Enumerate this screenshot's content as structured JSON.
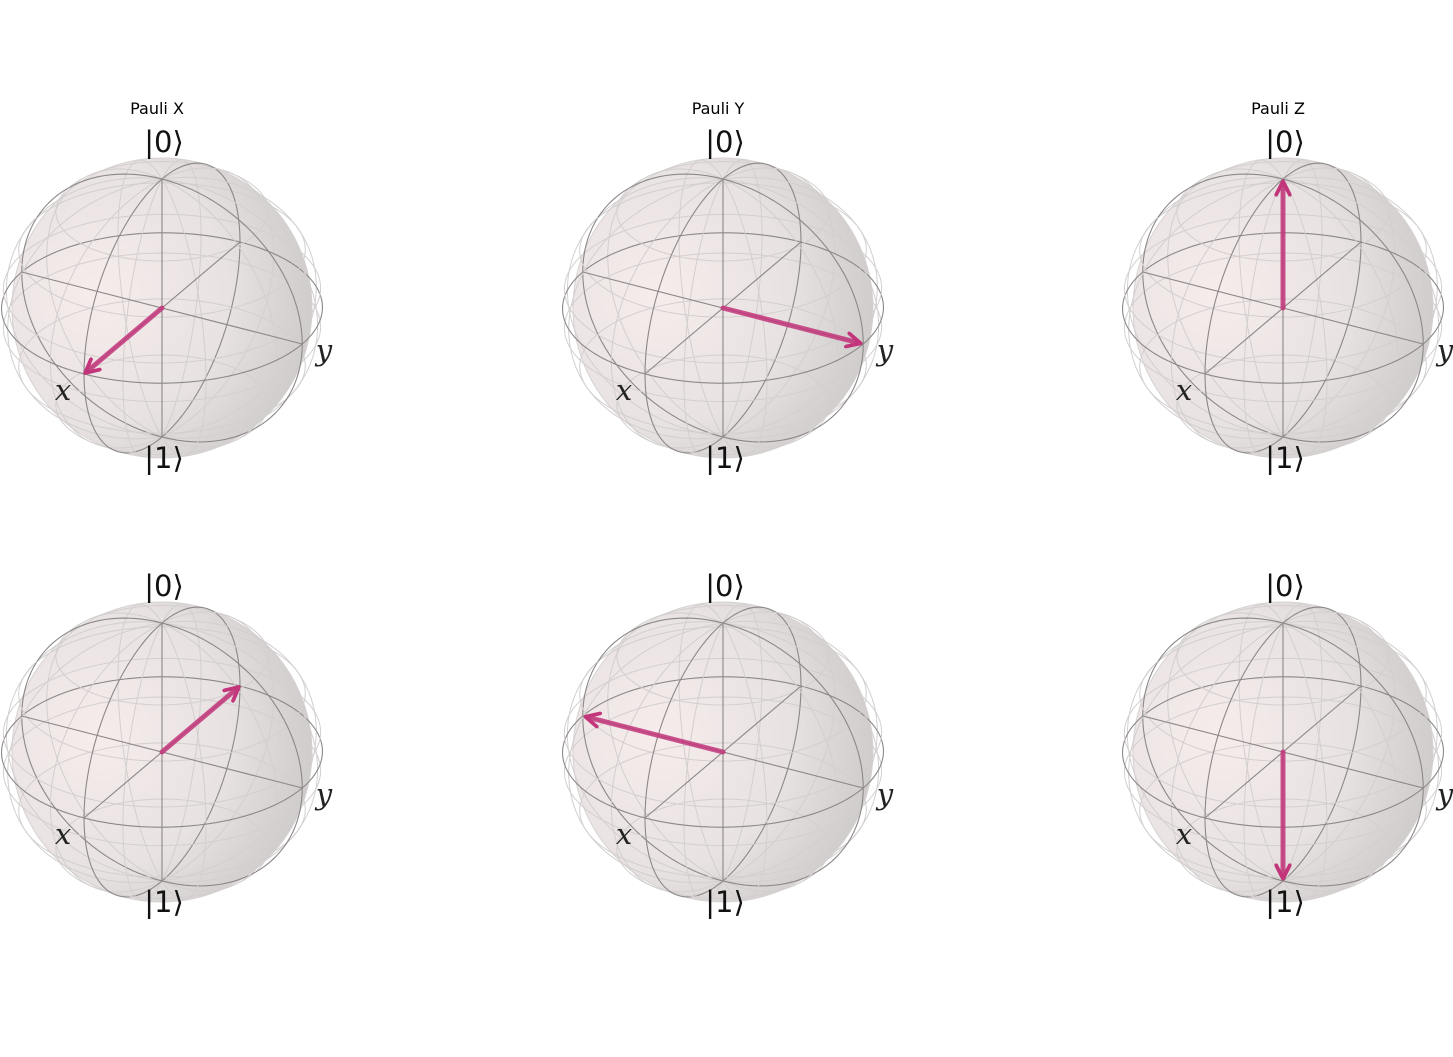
{
  "figure": {
    "colors": {
      "sphere_light": "#f7ecec",
      "sphere_mid": "#e8e2e2",
      "sphere_dark": "#c9c6c6",
      "wire_back": "#d3cfcf",
      "wire_front": "#8c8888",
      "vector": "#c2357a"
    },
    "panels": [
      {
        "title": "Pauli X",
        "label_zero": "|0⟩",
        "label_one": "|1⟩",
        "label_x": "x",
        "label_y": "y",
        "vector": {
          "x": 1,
          "y": 0,
          "z": 0
        }
      },
      {
        "title": "Pauli Y",
        "label_zero": "|0⟩",
        "label_one": "|1⟩",
        "label_x": "x",
        "label_y": "y",
        "vector": {
          "x": 0,
          "y": 1,
          "z": 0
        }
      },
      {
        "title": "Pauli Z",
        "label_zero": "|0⟩",
        "label_one": "|1⟩",
        "label_x": "x",
        "label_y": "y",
        "vector": {
          "x": 0,
          "y": 0,
          "z": 1
        }
      },
      {
        "title": "",
        "label_zero": "|0⟩",
        "label_one": "|1⟩",
        "label_x": "x",
        "label_y": "y",
        "vector": {
          "x": -1,
          "y": 0,
          "z": 0
        }
      },
      {
        "title": "",
        "label_zero": "|0⟩",
        "label_one": "|1⟩",
        "label_x": "x",
        "label_y": "y",
        "vector": {
          "x": 0,
          "y": -1,
          "z": 0
        }
      },
      {
        "title": "",
        "label_zero": "|0⟩",
        "label_one": "|1⟩",
        "label_x": "x",
        "label_y": "y",
        "vector": {
          "x": 0,
          "y": 0,
          "z": -1
        }
      }
    ]
  }
}
